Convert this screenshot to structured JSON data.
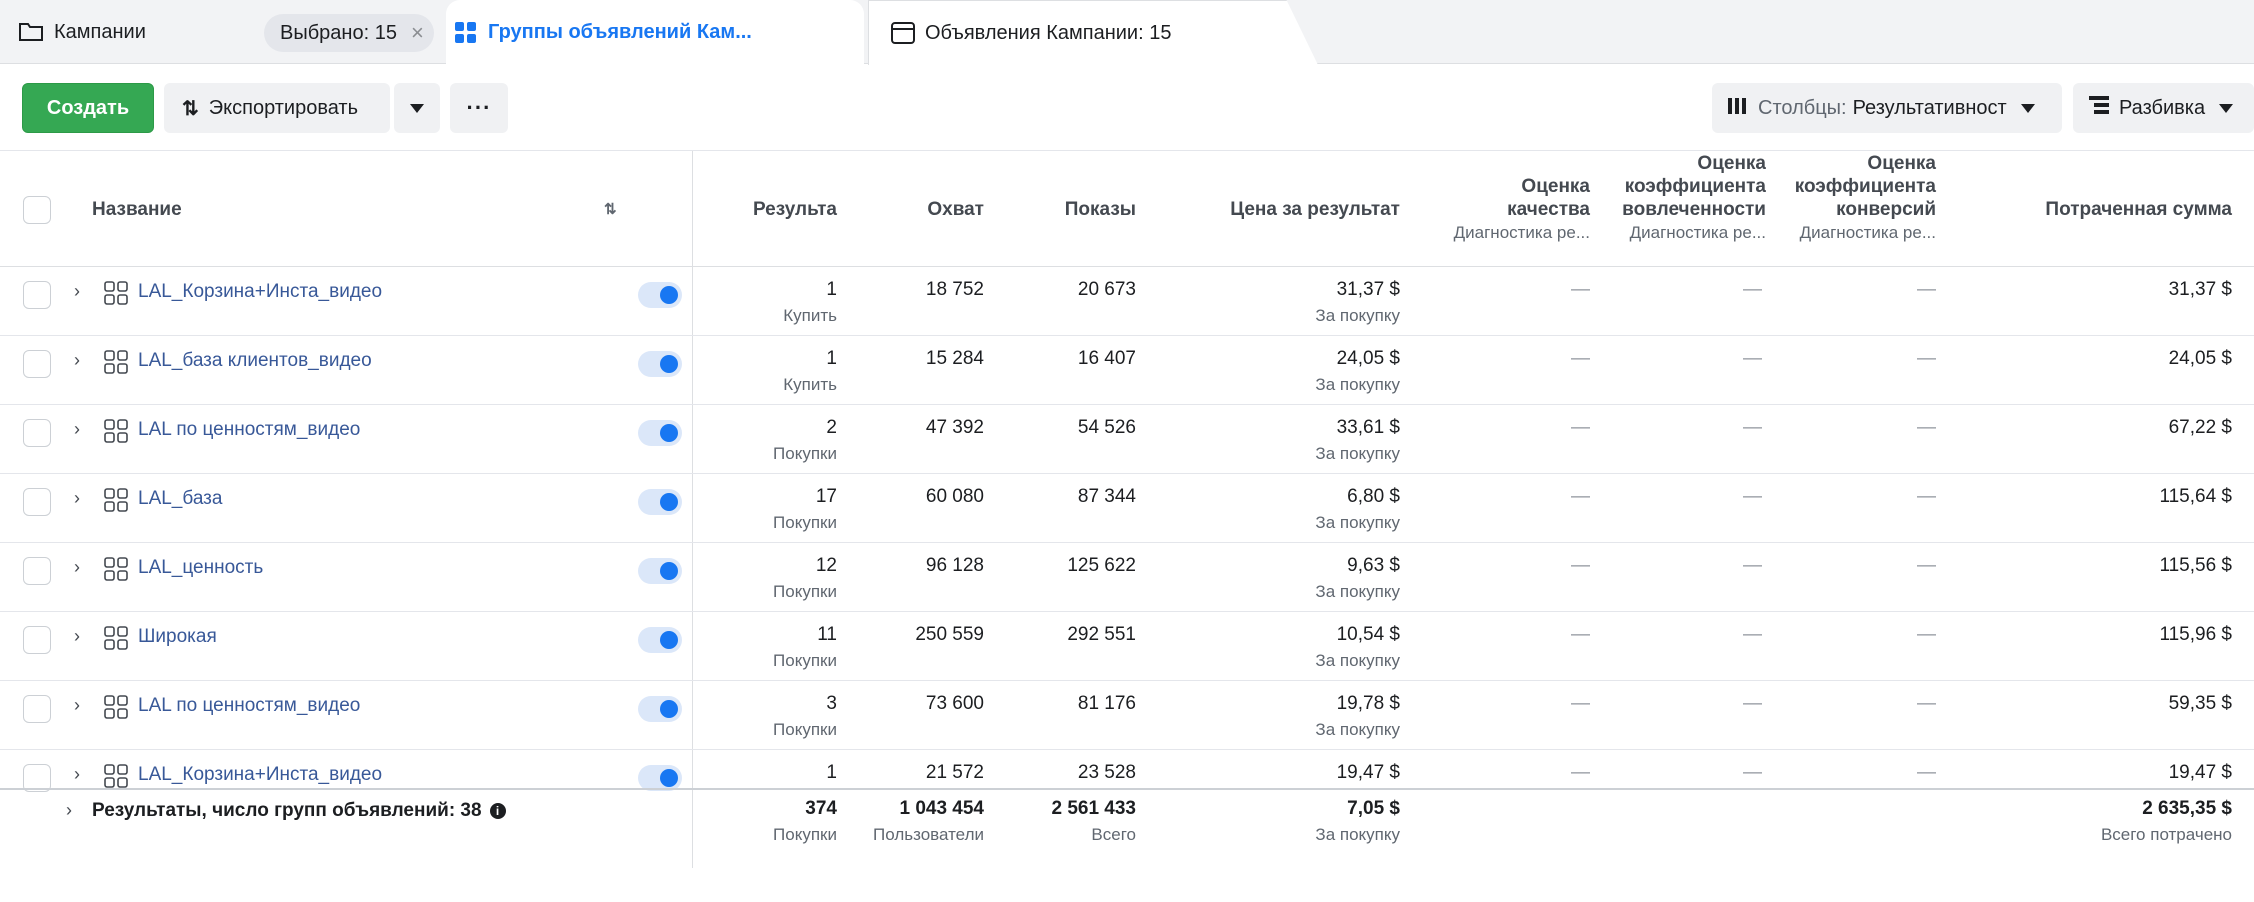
{
  "tabs": {
    "campaigns": "Кампании",
    "selected": "Выбрано: 15",
    "adsets": "Группы объявлений Кам...",
    "ads": "Объявления Кампании: 15"
  },
  "toolbar": {
    "create": "Создать",
    "export": "Экспортировать",
    "more": "···",
    "columns_label": "Столбцы:",
    "columns_value": "Результативност",
    "breakdown": "Разбивка"
  },
  "columns": {
    "name": "Название",
    "results": "Результа",
    "reach": "Охват",
    "impressions": "Показы",
    "cost_per_result": "Цена за результат",
    "quality": [
      "Оценка",
      "качества"
    ],
    "quality_sub": "Диагностика ре...",
    "engagement": [
      "Оценка",
      "коэффициента",
      "вовлеченности"
    ],
    "engagement_sub": "Диагностика ре...",
    "conversion": [
      "Оценка",
      "коэффициента",
      "конверсий"
    ],
    "conversion_sub": "Диагностика ре...",
    "spent": "Потраченная сумма"
  },
  "rows": [
    {
      "name": "LAL_Корзина+Инста_видео",
      "results": "1",
      "results_sub": "Купить",
      "reach": "18 752",
      "impressions": "20 673",
      "cpr": "31,37 $",
      "cpr_sub": "За покупку",
      "quality": "—",
      "engagement": "—",
      "conversion": "—",
      "spent": "31,37 $"
    },
    {
      "name": "LAL_база клиентов_видео",
      "results": "1",
      "results_sub": "Купить",
      "reach": "15 284",
      "impressions": "16 407",
      "cpr": "24,05 $",
      "cpr_sub": "За покупку",
      "quality": "—",
      "engagement": "—",
      "conversion": "—",
      "spent": "24,05 $"
    },
    {
      "name": "LAL по ценностям_видео",
      "results": "2",
      "results_sub": "Покупки",
      "reach": "47 392",
      "impressions": "54 526",
      "cpr": "33,61 $",
      "cpr_sub": "За покупку",
      "quality": "—",
      "engagement": "—",
      "conversion": "—",
      "spent": "67,22 $"
    },
    {
      "name": "LAL_база",
      "results": "17",
      "results_sub": "Покупки",
      "reach": "60 080",
      "impressions": "87 344",
      "cpr": "6,80 $",
      "cpr_sub": "За покупку",
      "quality": "—",
      "engagement": "—",
      "conversion": "—",
      "spent": "115,64 $"
    },
    {
      "name": "LAL_ценность",
      "results": "12",
      "results_sub": "Покупки",
      "reach": "96 128",
      "impressions": "125 622",
      "cpr": "9,63 $",
      "cpr_sub": "За покупку",
      "quality": "—",
      "engagement": "—",
      "conversion": "—",
      "spent": "115,56 $"
    },
    {
      "name": "Широкая",
      "results": "11",
      "results_sub": "Покупки",
      "reach": "250 559",
      "impressions": "292 551",
      "cpr": "10,54 $",
      "cpr_sub": "За покупку",
      "quality": "—",
      "engagement": "—",
      "conversion": "—",
      "spent": "115,96 $"
    },
    {
      "name": "LAL по ценностям_видео",
      "results": "3",
      "results_sub": "Покупки",
      "reach": "73 600",
      "impressions": "81 176",
      "cpr": "19,78 $",
      "cpr_sub": "За покупку",
      "quality": "—",
      "engagement": "—",
      "conversion": "—",
      "spent": "59,35 $"
    },
    {
      "name": "LAL_Корзина+Инста_видео",
      "results": "1",
      "results_sub": "",
      "reach": "21 572",
      "impressions": "23 528",
      "cpr": "19,47 $",
      "cpr_sub": "",
      "quality": "—",
      "engagement": "—",
      "conversion": "—",
      "spent": "19,47 $"
    }
  ],
  "totals": {
    "label": "Результаты, число групп объявлений: 38",
    "results": "374",
    "results_sub": "Покупки",
    "reach": "1 043 454",
    "reach_sub": "Пользователи",
    "impressions": "2 561 433",
    "impressions_sub": "Всего",
    "cpr": "7,05 $",
    "cpr_sub": "За покупку",
    "spent": "2 635,35 $",
    "spent_sub": "Всего потрачено"
  },
  "colors": {
    "accent": "#1877f2",
    "create": "#35a853",
    "link": "#385898"
  }
}
